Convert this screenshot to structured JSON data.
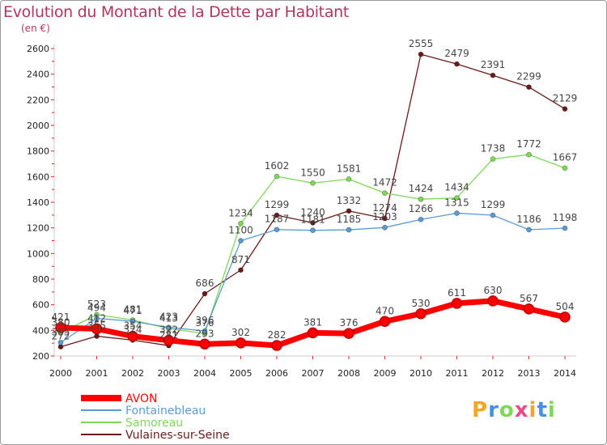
{
  "chart_data": {
    "type": "line",
    "title": "Evolution du Montant de la Dette par Habitant",
    "subtitle": "(en €)",
    "x": [
      "2000",
      "2001",
      "2002",
      "2003",
      "2004",
      "2005",
      "2006",
      "2007",
      "2008",
      "2009",
      "2010",
      "2011",
      "2012",
      "2013",
      "2014"
    ],
    "ylim": [
      200,
      2600
    ],
    "yticks": [
      200,
      400,
      600,
      800,
      1000,
      1200,
      1400,
      1600,
      1800,
      2000,
      2200,
      2400,
      2600
    ],
    "grid": false,
    "legend_position": "bottom-left",
    "series": [
      {
        "name": "AVON",
        "color": "#ff0000",
        "values": [
          421,
          412,
          354,
          322,
          293,
          302,
          282,
          381,
          376,
          470,
          530,
          611,
          630,
          567,
          504
        ]
      },
      {
        "name": "Fontainebleau",
        "color": "#5b9bd5",
        "values": [
          305,
          494,
          471,
          423,
          396,
          1100,
          1187,
          1181,
          1185,
          1203,
          1266,
          1315,
          1299,
          1186,
          1198
        ]
      },
      {
        "name": "Samoreau",
        "color": "#7ed957",
        "values": [
          380,
          523,
          481,
          413,
          376,
          1234,
          1602,
          1550,
          1581,
          1472,
          1424,
          1434,
          1738,
          1772,
          1667
        ]
      },
      {
        "name": "Vulaines-sur-Seine",
        "color": "#6b1a1a",
        "values": [
          272,
          355,
          324,
          281,
          686,
          871,
          1299,
          1240,
          1332,
          1274,
          2555,
          2479,
          2391,
          2299,
          2129
        ]
      }
    ]
  },
  "logo": {
    "text": "Proxiti"
  }
}
